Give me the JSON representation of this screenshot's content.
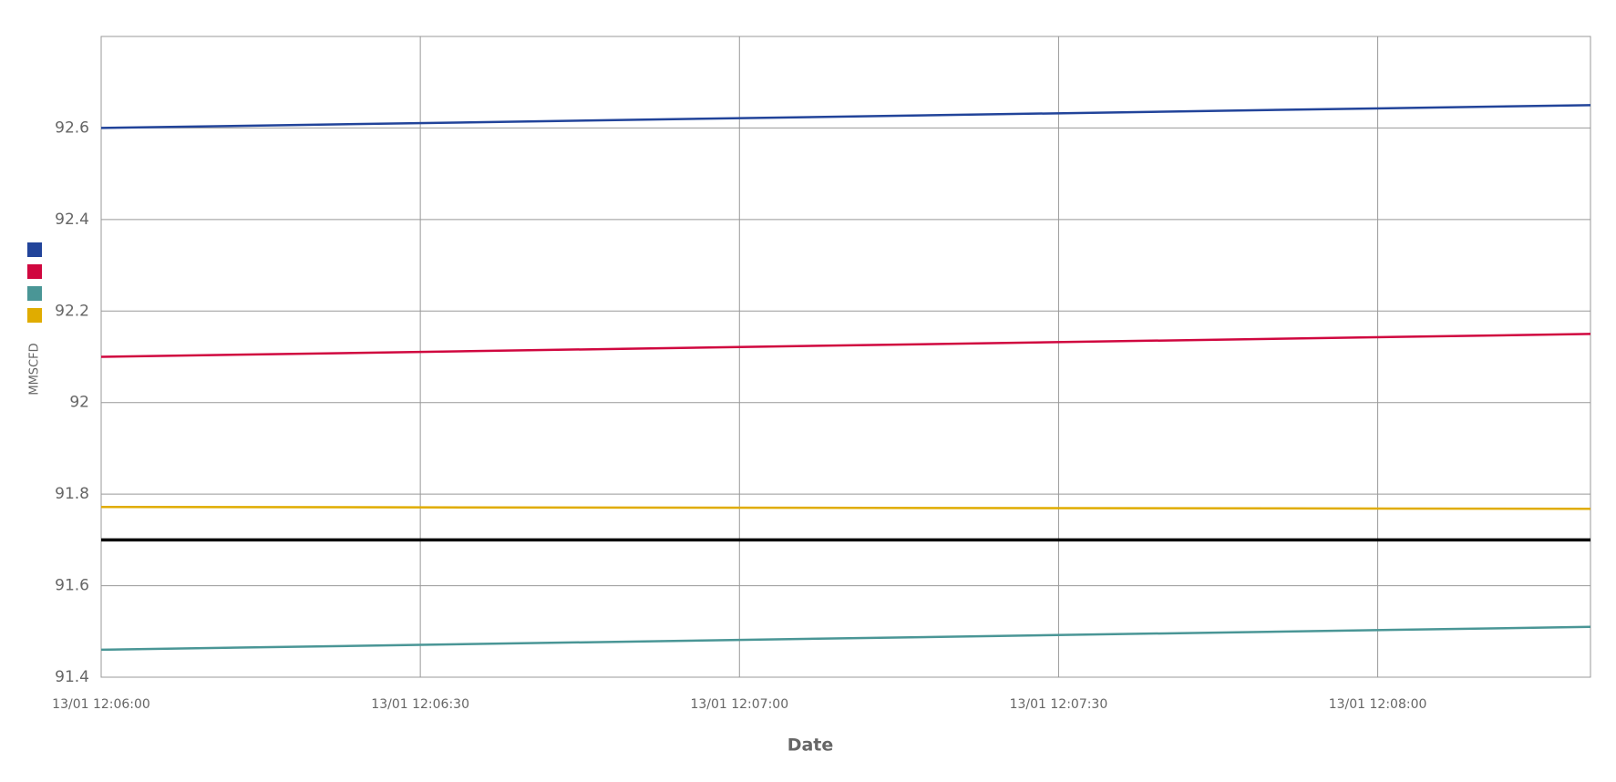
{
  "chart_data": {
    "type": "line",
    "y_label": "MMSCFD",
    "x_label": "Date",
    "x": [
      "13/01 12:06:00",
      "13/01 12:08:20"
    ],
    "series": [
      {
        "color": "#22449a",
        "values": [
          92.6,
          92.65
        ]
      },
      {
        "color": "#d0073f",
        "values": [
          92.1,
          92.15
        ]
      },
      {
        "color": "#4a9696",
        "values": [
          91.46,
          91.51
        ]
      },
      {
        "color": "#e0ac00",
        "values": [
          91.772,
          91.768
        ]
      }
    ],
    "reference_line": {
      "value": 91.7,
      "color": "#000000"
    },
    "xlim": [
      "13/01 12:06:00",
      "13/01 12:08:20"
    ],
    "xticks": [
      "13/01 12:06:00",
      "13/01 12:06:30",
      "13/01 12:07:00",
      "13/01 12:07:30",
      "13/01 12:08:00"
    ],
    "ylim": [
      91.4,
      92.8
    ],
    "yticks": [
      91.4,
      91.6,
      91.8,
      92,
      92.2,
      92.4,
      92.6
    ],
    "grid": true
  }
}
